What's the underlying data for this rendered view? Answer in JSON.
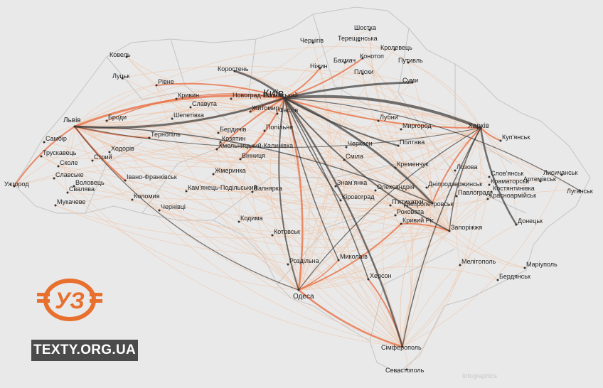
{
  "site_label": "TEXTY.ORG.UA",
  "credit": "Infographics",
  "logo_text": "УЗ",
  "colors": {
    "background": "#e9e9e9",
    "border": "#c4c4c4",
    "route_dark": "#3a3a3a",
    "route_orange": "#e8693c",
    "route_pale": "#efc6a9",
    "logo": "#e8702f"
  },
  "hubs": [
    "Київ",
    "Львів",
    "Харків",
    "Дніпропетровськ",
    "Одеса",
    "Сімферополь",
    "Запоріжжя"
  ],
  "cities": [
    {
      "name": "Ковель"
    },
    {
      "name": "Луцьк"
    },
    {
      "name": "Рівне"
    },
    {
      "name": "Коростень"
    },
    {
      "name": "Київ",
      "size": "big"
    },
    {
      "name": "Чернігів"
    },
    {
      "name": "Шостка"
    },
    {
      "name": "Терещенська"
    },
    {
      "name": "Кролевець"
    },
    {
      "name": "Конотоп"
    },
    {
      "name": "Бахмач"
    },
    {
      "name": "Ніжин"
    },
    {
      "name": "Пліски"
    },
    {
      "name": "Путивль"
    },
    {
      "name": "Суми"
    },
    {
      "name": "Кривин"
    },
    {
      "name": "Новоград-Волинський"
    },
    {
      "name": "Славута"
    },
    {
      "name": "Шепетівка"
    },
    {
      "name": "Житомир"
    },
    {
      "name": "Фастів"
    },
    {
      "name": "Львів",
      "size": "mid"
    },
    {
      "name": "Броди"
    },
    {
      "name": "Самбір"
    },
    {
      "name": "Трускавець"
    },
    {
      "name": "Сколе"
    },
    {
      "name": "Славське"
    },
    {
      "name": "Ужгород"
    },
    {
      "name": "Воловець"
    },
    {
      "name": "Свалява"
    },
    {
      "name": "Мукачеве"
    },
    {
      "name": "Тернопіль"
    },
    {
      "name": "Ходорів"
    },
    {
      "name": "Стрий"
    },
    {
      "name": "Івано-Франківськ"
    },
    {
      "name": "Коломия"
    },
    {
      "name": "Чернівці"
    },
    {
      "name": "Кам'янець-Подільський"
    },
    {
      "name": "Хмельницький-Калинівка"
    },
    {
      "name": "Бердичів"
    },
    {
      "name": "Козятин"
    },
    {
      "name": "Вінниця"
    },
    {
      "name": "Жмеринка"
    },
    {
      "name": "Попільня"
    },
    {
      "name": "Вапнярка"
    },
    {
      "name": "Кодима"
    },
    {
      "name": "Котовськ"
    },
    {
      "name": "Роздільна"
    },
    {
      "name": "Одеса",
      "size": "mid"
    },
    {
      "name": "Миколаїв"
    },
    {
      "name": "Херсон"
    },
    {
      "name": "Знам'янка"
    },
    {
      "name": "Кіровоград"
    },
    {
      "name": "Черкаси"
    },
    {
      "name": "Сміла"
    },
    {
      "name": "Лубни"
    },
    {
      "name": "Миргород"
    },
    {
      "name": "Полтава"
    },
    {
      "name": "Кременчук"
    },
    {
      "name": "Олександрія"
    },
    {
      "name": "П'ятихатки"
    },
    {
      "name": "Роковата"
    },
    {
      "name": "Кривий Ріг"
    },
    {
      "name": "Дніпродзержинськ"
    },
    {
      "name": "Дніпропетровськ"
    },
    {
      "name": "Павлоград"
    },
    {
      "name": "Запоріжжя"
    },
    {
      "name": "Мелітополь"
    },
    {
      "name": "Бердянськ"
    },
    {
      "name": "Маріуполь"
    },
    {
      "name": "Донецьк"
    },
    {
      "name": "Красноармійськ"
    },
    {
      "name": "Костянтинівка"
    },
    {
      "name": "Краматорськ"
    },
    {
      "name": "Слов'янськ"
    },
    {
      "name": "Лозова"
    },
    {
      "name": "Куп'янськ"
    },
    {
      "name": "Харків",
      "size": "mid"
    },
    {
      "name": "Артемівськ"
    },
    {
      "name": "Лисичанськ"
    },
    {
      "name": "Луганськ"
    },
    {
      "name": "Сімферополь"
    },
    {
      "name": "Севастополь"
    }
  ]
}
